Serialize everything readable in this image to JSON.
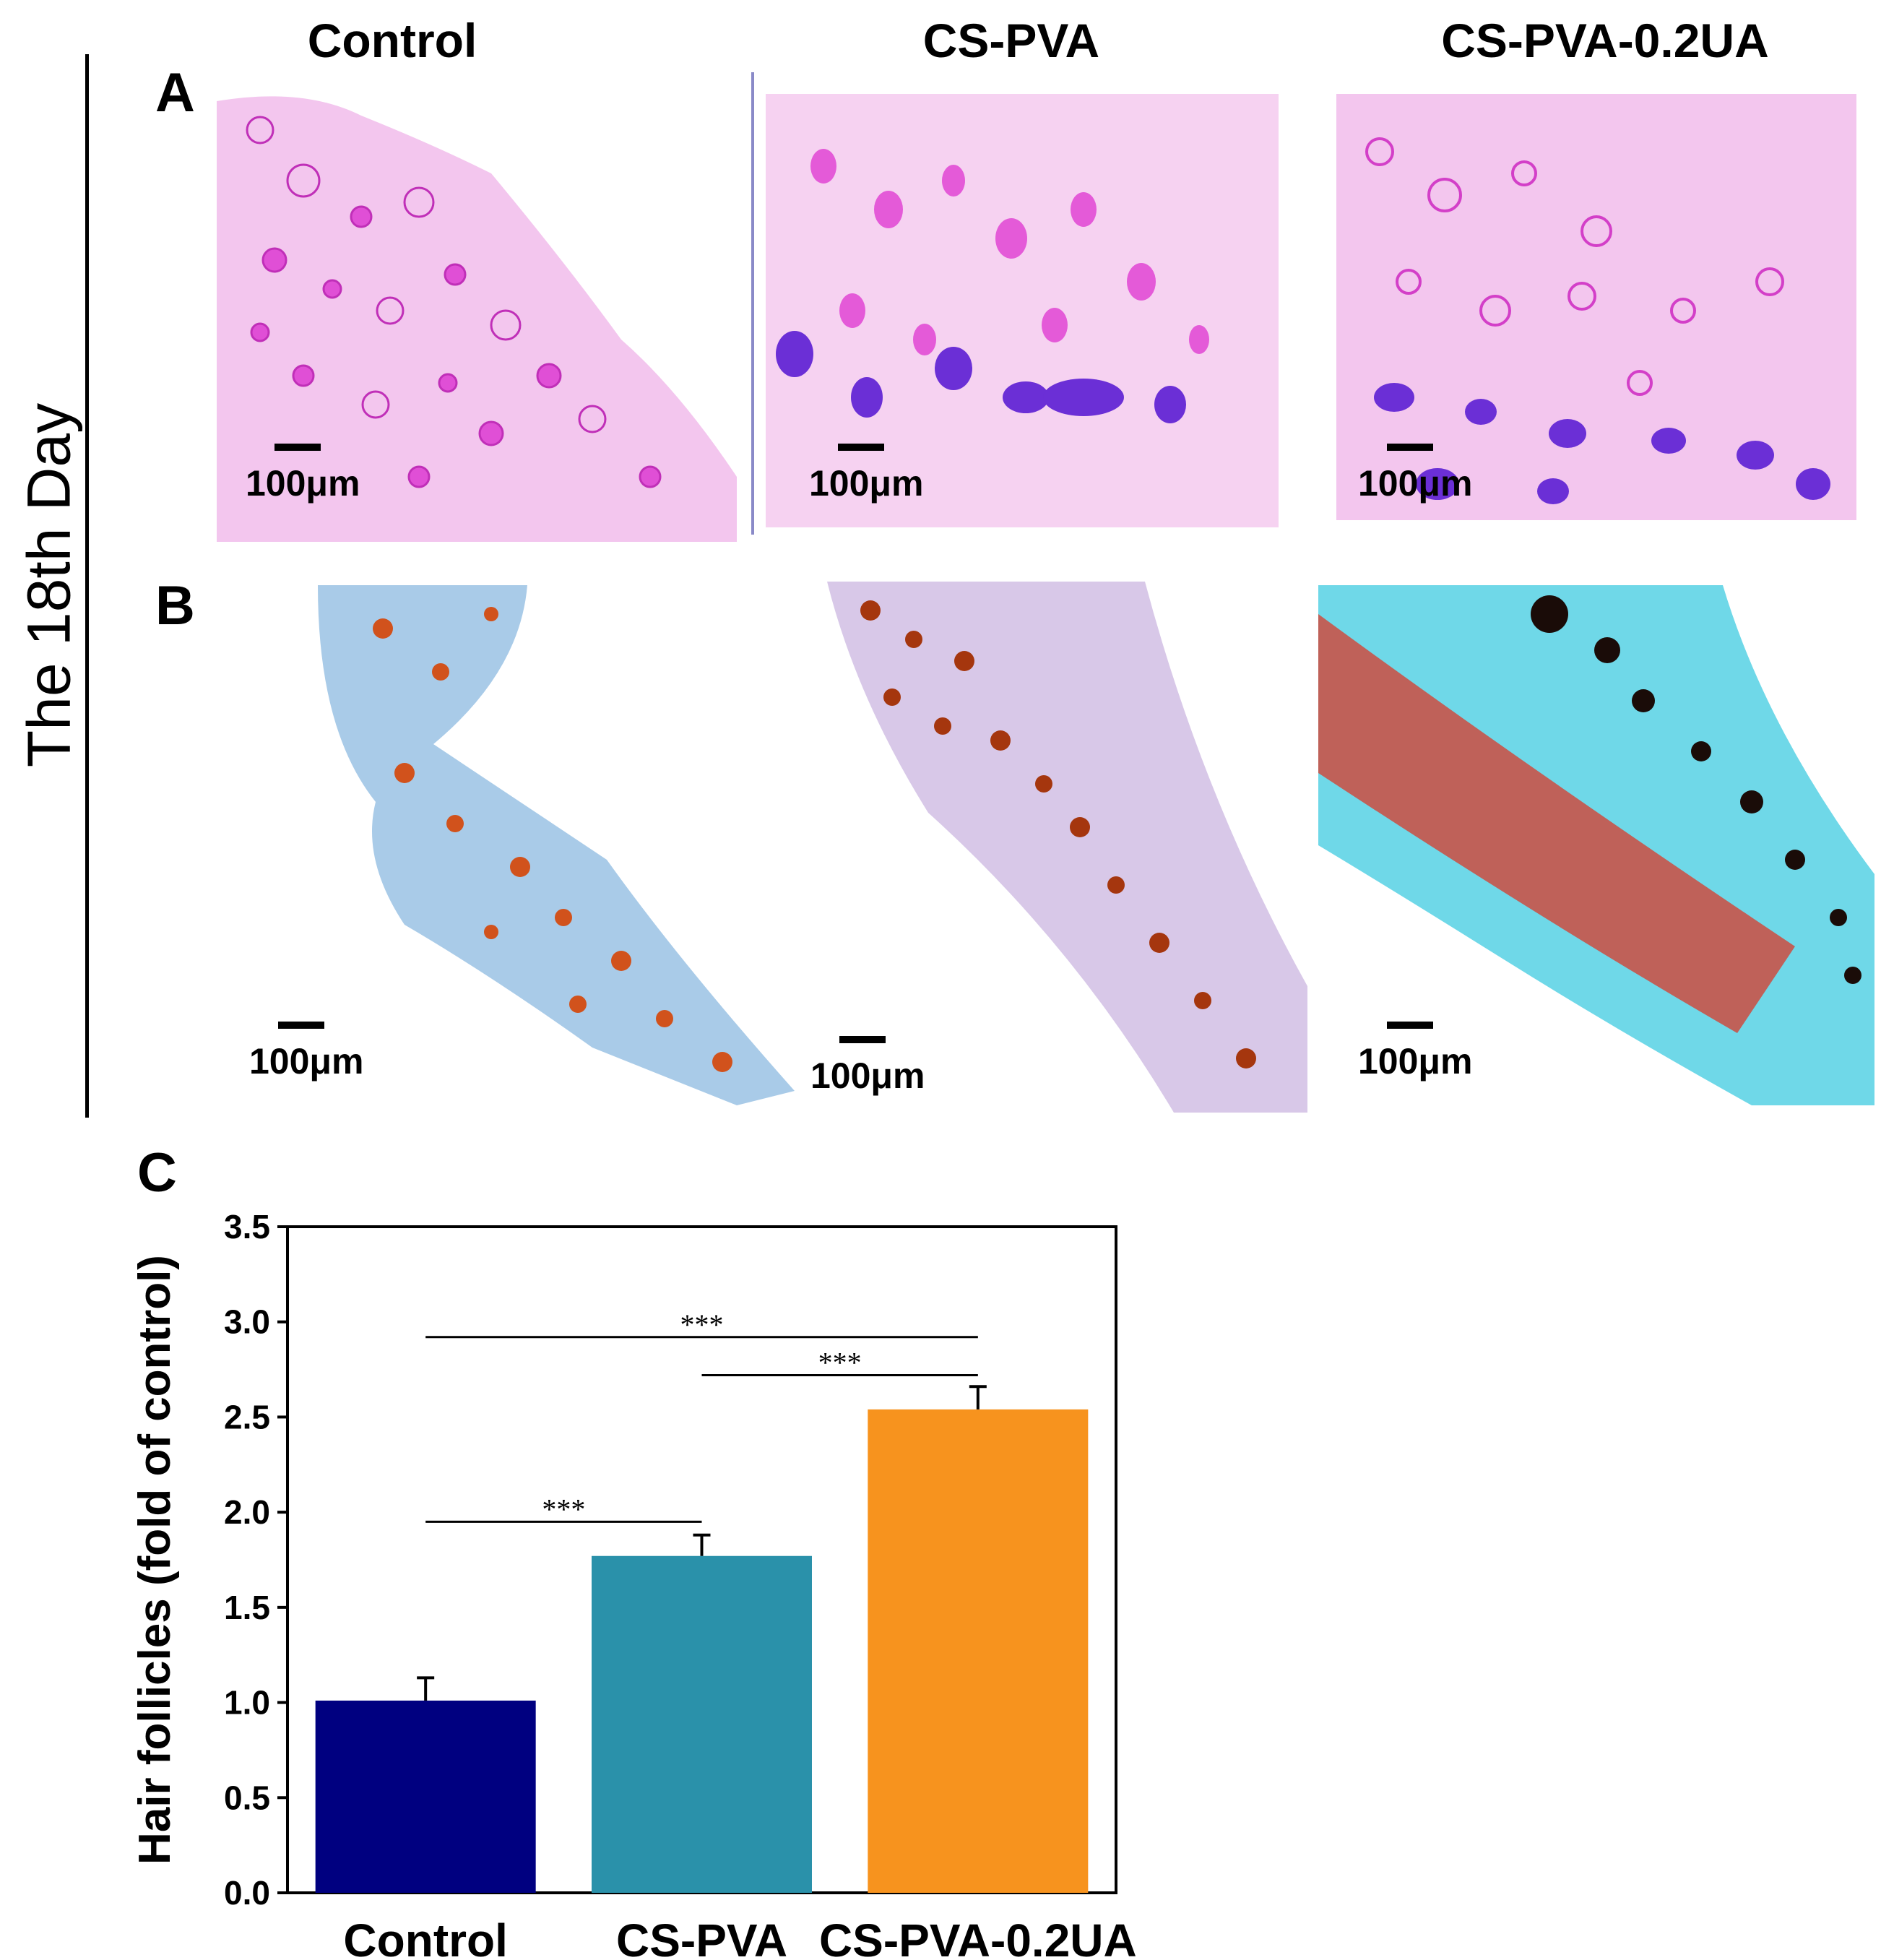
{
  "figure": {
    "side_label": "The 18th Day",
    "column_headers": [
      "Control",
      "CS-PVA",
      "CS-PVA-0.2UA"
    ],
    "panel_letters": {
      "a": "A",
      "b": "B",
      "c": "C"
    },
    "scale_bar_label": "100μm",
    "micrograph_panels": [
      {
        "row": "A",
        "group": "Control",
        "stain": "H&E"
      },
      {
        "row": "A",
        "group": "CS-PVA",
        "stain": "H&E"
      },
      {
        "row": "A",
        "group": "CS-PVA-0.2UA",
        "stain": "H&E"
      },
      {
        "row": "B",
        "group": "Control",
        "stain": "IHC"
      },
      {
        "row": "B",
        "group": "CS-PVA",
        "stain": "IHC"
      },
      {
        "row": "B",
        "group": "CS-PVA-0.2UA",
        "stain": "IHC"
      }
    ]
  },
  "chart_data": {
    "type": "bar",
    "title": "",
    "xlabel": "",
    "ylabel": "Hair follicles (fold of control)",
    "categories": [
      "Control",
      "CS-PVA",
      "CS-PVA-0.2UA"
    ],
    "values": [
      1.01,
      1.77,
      2.54
    ],
    "errors": [
      0.12,
      0.11,
      0.12
    ],
    "colors": [
      "#000080",
      "#2a91aa",
      "#f7931e"
    ],
    "ylim": [
      0,
      3.5
    ],
    "yticks": [
      "0.0",
      "0.5",
      "1.0",
      "1.5",
      "2.0",
      "2.5",
      "3.0",
      "3.5"
    ],
    "significance": [
      {
        "from": 0,
        "to": 2,
        "label": "***",
        "y": 2.92
      },
      {
        "from": 1,
        "to": 2,
        "label": "***",
        "y": 2.72
      },
      {
        "from": 0,
        "to": 1,
        "label": "***",
        "y": 1.95
      }
    ]
  }
}
